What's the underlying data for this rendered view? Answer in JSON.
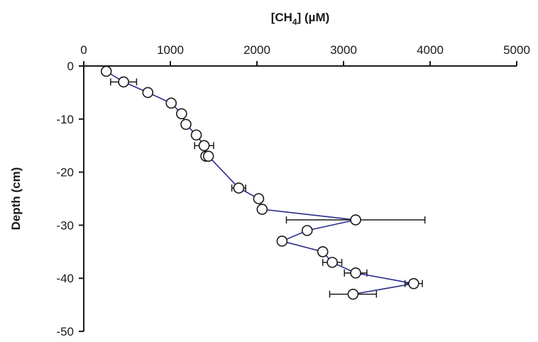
{
  "chart_data": {
    "type": "scatter",
    "title": "",
    "xlabel": "[CH4] (µM)",
    "xlabel_parts": {
      "pre": "[CH",
      "sub": "4",
      "post": "] (µM)"
    },
    "ylabel": "Depth (cm)",
    "x_axis_position": "top",
    "xlim": [
      0,
      5000
    ],
    "ylim": [
      -50,
      0
    ],
    "xticks": [
      0,
      1000,
      2000,
      3000,
      4000,
      5000
    ],
    "xtick_labels": [
      "0",
      "1000",
      "2000",
      "3000",
      "4000",
      "5000"
    ],
    "yticks": [
      0,
      -10,
      -20,
      -30,
      -40,
      -50
    ],
    "ytick_labels": [
      "0",
      "-10",
      "-20",
      "-30",
      "-40",
      "-50"
    ],
    "grid": false,
    "legend": "none",
    "colors": {
      "line": "#2b2b8c",
      "marker_fill": "#ffffff",
      "marker_edge": "#1a1a1a",
      "axis": "#1a1a1a"
    },
    "series": [
      {
        "x": [
          260,
          460,
          740,
          1010,
          1130,
          1180,
          1300,
          1390,
          1410,
          1440,
          1790,
          2020,
          2060,
          3140,
          2580,
          2290,
          2760,
          2870,
          3140,
          3810,
          3110
        ],
        "y": [
          -1,
          -3,
          -5,
          -7,
          -9,
          -11,
          -13,
          -15,
          -17,
          -17,
          -23,
          -25,
          -27,
          -29,
          -31,
          -33,
          -35,
          -37,
          -39,
          -41,
          -43
        ],
        "error": [
          null,
          150,
          null,
          null,
          null,
          null,
          null,
          110,
          null,
          null,
          80,
          null,
          null,
          800,
          null,
          null,
          null,
          110,
          130,
          100,
          270
        ]
      }
    ]
  }
}
